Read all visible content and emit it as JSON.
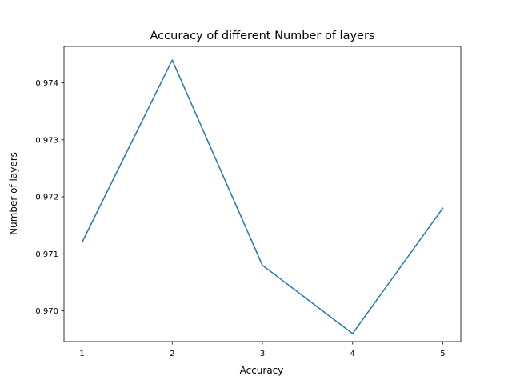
{
  "chart_data": {
    "type": "line",
    "title": "Accuracy of different Number of layers",
    "xlabel": "Accuracy",
    "ylabel": "Number of layers",
    "x": [
      1,
      2,
      3,
      4,
      5
    ],
    "series": [
      {
        "values": [
          0.9712,
          0.9744,
          0.9708,
          0.9696,
          0.9718
        ],
        "color": "#1f77b4"
      }
    ],
    "xlim": [
      0.8,
      5.2
    ],
    "ylim": [
      0.96946,
      0.97464
    ],
    "xticks": [
      1,
      2,
      3,
      4,
      5
    ],
    "xtick_labels": [
      "1",
      "2",
      "3",
      "4",
      "5"
    ],
    "yticks": [
      0.97,
      0.971,
      0.972,
      0.973,
      0.974
    ],
    "ytick_labels": [
      "0.970",
      "0.971",
      "0.972",
      "0.973",
      "0.974"
    ],
    "grid": false,
    "legend": "none"
  }
}
